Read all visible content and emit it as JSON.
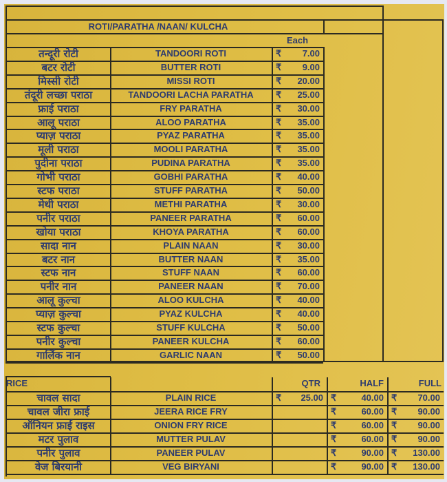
{
  "section1": {
    "title": "ROTI/PARATHA /NAAN/ KULCHA",
    "price_header": "Each",
    "currency": "₹",
    "items": [
      {
        "hindi": "तन्दूरी रोटी",
        "name": "TANDOORI ROTI",
        "price": "7.00"
      },
      {
        "hindi": "बटर रोटी",
        "name": "BUTTER ROTI",
        "price": "9.00"
      },
      {
        "hindi": "मिस्सी रोटी",
        "name": "MISSI ROTI",
        "price": "20.00"
      },
      {
        "hindi": "तंदूरी लच्छा पराठा",
        "name": "TANDOORI LACHA PARATHA",
        "price": "25.00"
      },
      {
        "hindi": "फ्राई पराठा",
        "name": "FRY PARATHA",
        "price": "30.00"
      },
      {
        "hindi": "आलू पराठा",
        "name": "ALOO PARATHA",
        "price": "35.00"
      },
      {
        "hindi": "प्याज़ पराठा",
        "name": "PYAZ PARATHA",
        "price": "35.00"
      },
      {
        "hindi": "मूली पराठा",
        "name": "MOOLI PARATHA",
        "price": "35.00"
      },
      {
        "hindi": "पुदीना पराठा",
        "name": "PUDINA PARATHA",
        "price": "35.00"
      },
      {
        "hindi": "गोभी पराठा",
        "name": "GOBHI PARATHA",
        "price": "40.00"
      },
      {
        "hindi": "स्टफ पराठा",
        "name": "STUFF PARATHA",
        "price": "50.00"
      },
      {
        "hindi": "मेथी पराठा",
        "name": "METHI PARATHA",
        "price": "30.00"
      },
      {
        "hindi": "पनीर पराठा",
        "name": "PANEER PARATHA",
        "price": "60.00"
      },
      {
        "hindi": "खोया पराठा",
        "name": "KHOYA PARATHA",
        "price": "60.00"
      },
      {
        "hindi": "सादा नान",
        "name": "PLAIN NAAN",
        "price": "30.00"
      },
      {
        "hindi": "बटर नान",
        "name": "BUTTER NAAN",
        "price": "35.00"
      },
      {
        "hindi": "स्टफ नान",
        "name": "STUFF NAAN",
        "price": "60.00"
      },
      {
        "hindi": "पनीर नान",
        "name": "PANEER NAAN",
        "price": "70.00"
      },
      {
        "hindi": "आलू कुल्चा",
        "name": "ALOO KULCHA",
        "price": "40.00"
      },
      {
        "hindi": "प्याज़ कुल्चा",
        "name": "PYAZ KULCHA",
        "price": "40.00"
      },
      {
        "hindi": "स्टफ कुल्चा",
        "name": "STUFF KULCHA",
        "price": "50.00"
      },
      {
        "hindi": "पनीर कुल्चा",
        "name": "PANEER KULCHA",
        "price": "60.00"
      },
      {
        "hindi": "गार्लिक नान",
        "name": "GARLIC NAAN",
        "price": "50.00"
      }
    ]
  },
  "section2": {
    "title": "RICE",
    "headers": [
      "QTR",
      "HALF",
      "FULL"
    ],
    "currency": "₹",
    "items": [
      {
        "hindi": "चावल सादा",
        "name": "PLAIN RICE",
        "qtr": "25.00",
        "half": "40.00",
        "full": "70.00"
      },
      {
        "hindi": "चावल जीरा फ्राई",
        "name": "JEERA RICE FRY",
        "qtr": "",
        "half": "60.00",
        "full": "90.00"
      },
      {
        "hindi": "ऑनियन फ्राई राइस",
        "name": "ONION FRY RICE",
        "qtr": "",
        "half": "60.00",
        "full": "90.00"
      },
      {
        "hindi": "मटर पुलाव",
        "name": "MUTTER PULAV",
        "qtr": "",
        "half": "60.00",
        "full": "90.00"
      },
      {
        "hindi": "पनीर पुलाव",
        "name": "PANEER PULAV",
        "qtr": "",
        "half": "90.00",
        "full": "130.00"
      },
      {
        "hindi": "वेज बिरयानी",
        "name": "VEG BIRYANI",
        "qtr": "",
        "half": "90.00",
        "full": "130.00"
      }
    ]
  },
  "colors": {
    "paper": "#dcb940",
    "text": "#2d3b6e",
    "lines": "#2b2a22"
  }
}
